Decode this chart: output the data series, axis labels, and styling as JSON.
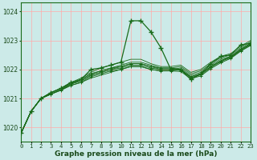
{
  "background_color": "#cceae8",
  "grid_color_h": "#ffaaaa",
  "grid_color_v": "#ffaaaa",
  "line_color": "#1a6b1a",
  "xlabel": "Graphe pression niveau de la mer (hPa)",
  "xlim": [
    0,
    23
  ],
  "ylim": [
    1019.5,
    1024.3
  ],
  "yticks": [
    1020,
    1021,
    1022,
    1023,
    1024
  ],
  "series": [
    [
      1019.8,
      1020.55,
      1021.0,
      1021.15,
      1021.3,
      1021.45,
      1021.55,
      1021.7,
      1021.8,
      1021.9,
      1022.0,
      1022.1,
      1022.1,
      1022.0,
      1021.95,
      1021.95,
      1022.0,
      1021.75,
      1021.85,
      1022.1,
      1022.3,
      1022.4,
      1022.65,
      1022.85
    ],
    [
      1019.8,
      1020.55,
      1021.0,
      1021.15,
      1021.3,
      1021.5,
      1021.6,
      1021.8,
      1021.9,
      1022.0,
      1022.1,
      1022.2,
      1022.2,
      1022.1,
      1022.0,
      1022.0,
      1022.05,
      1021.8,
      1021.9,
      1022.15,
      1022.35,
      1022.45,
      1022.7,
      1022.9
    ],
    [
      1019.8,
      1020.55,
      1021.0,
      1021.2,
      1021.35,
      1021.5,
      1021.65,
      1021.85,
      1021.95,
      1022.05,
      1022.15,
      1022.25,
      1022.25,
      1022.15,
      1022.05,
      1022.05,
      1022.1,
      1021.85,
      1021.95,
      1022.2,
      1022.4,
      1022.5,
      1022.75,
      1022.95
    ],
    [
      1019.8,
      1020.55,
      1021.0,
      1021.2,
      1021.35,
      1021.55,
      1021.7,
      1021.9,
      1022.05,
      1022.15,
      1022.25,
      1022.35,
      1022.35,
      1022.2,
      1022.1,
      1022.1,
      1022.15,
      1021.9,
      1022.0,
      1022.25,
      1022.45,
      1022.55,
      1022.8,
      1023.0
    ]
  ],
  "main_series_idx": 0,
  "spike_series": [
    1019.8,
    1020.55,
    1021.0,
    1021.2,
    1021.35,
    1021.55,
    1021.65,
    1022.0,
    1022.05,
    1022.15,
    1022.25,
    1023.68,
    1023.68,
    1023.3,
    1022.75,
    1022.0,
    1022.0,
    1021.65,
    1021.85,
    1022.2,
    1022.45,
    1022.5,
    1022.85,
    1022.9
  ],
  "flat_series_1": [
    1019.8,
    1020.55,
    1021.0,
    1021.2,
    1021.35,
    1021.55,
    1021.65,
    1021.85,
    1021.95,
    1022.05,
    1022.1,
    1022.2,
    1022.2,
    1022.1,
    1022.05,
    1022.05,
    1022.0,
    1021.75,
    1021.85,
    1022.1,
    1022.3,
    1022.45,
    1022.7,
    1022.9
  ],
  "flat_series_2": [
    1019.8,
    1020.55,
    1021.0,
    1021.15,
    1021.3,
    1021.5,
    1021.6,
    1021.8,
    1021.9,
    1022.0,
    1022.05,
    1022.15,
    1022.15,
    1022.05,
    1022.0,
    1022.0,
    1021.98,
    1021.72,
    1021.82,
    1022.07,
    1022.27,
    1022.42,
    1022.67,
    1022.87
  ],
  "flat_series_3": [
    1019.8,
    1020.55,
    1021.0,
    1021.15,
    1021.28,
    1021.45,
    1021.55,
    1021.75,
    1021.85,
    1021.95,
    1022.0,
    1022.1,
    1022.1,
    1022.0,
    1021.95,
    1021.95,
    1021.93,
    1021.68,
    1021.78,
    1022.03,
    1022.23,
    1022.38,
    1022.63,
    1022.83
  ]
}
